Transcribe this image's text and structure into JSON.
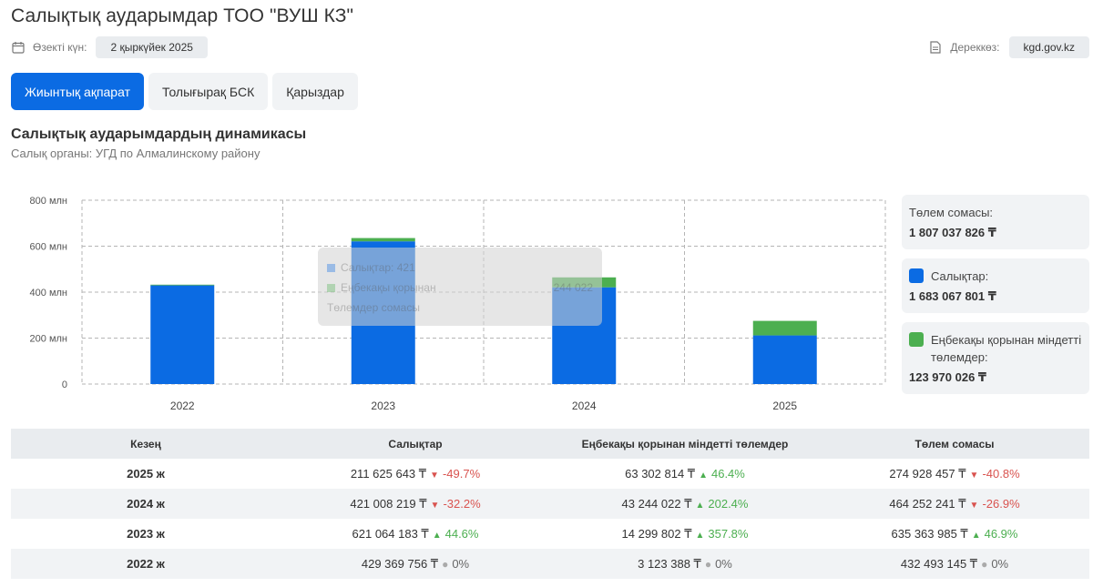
{
  "title": "Салықтық аударымдар ТОО \"ВУШ КЗ\"",
  "meta": {
    "date_label": "Өзекті күн:",
    "date_value": "2 қыркүйек 2025",
    "source_label": "Дереккөз:",
    "source_value": "kgd.gov.kz",
    "calendar_icon": "calendar-icon",
    "document_icon": "document-icon"
  },
  "tabs": [
    {
      "label": "Жиынтық ақпарат",
      "active": true
    },
    {
      "label": "Толығырақ БСК",
      "active": false
    },
    {
      "label": "Қарыздар",
      "active": false
    }
  ],
  "section": {
    "title": "Салықтық аударымдардың динамикасы",
    "subtitle": "Салық органы: УГД по Алмалинскому району"
  },
  "colors": {
    "accent": "#0b6be3",
    "taxes": "#0b6be3",
    "payroll": "#4caf50",
    "down": "#d9534f",
    "up": "#4caf50"
  },
  "chart_data": {
    "type": "bar",
    "stacked": true,
    "categories": [
      "2022",
      "2023",
      "2024",
      "2025"
    ],
    "y_ticks": [
      "0",
      "200 млн",
      "400 млн",
      "600 млн",
      "800 млн"
    ],
    "ylim": [
      0,
      800000000
    ],
    "grid": true,
    "legend": "right",
    "series": [
      {
        "name": "Салықтар",
        "values": [
          429369756,
          621064183,
          421008219,
          211625643
        ]
      },
      {
        "name": "Еңбекақы қорынан міндетті төлемдер",
        "values": [
          3123388,
          14299802,
          43244022,
          63302814
        ]
      }
    ]
  },
  "tooltip": {
    "row1_label": "Салықтар: 421",
    "row2_label": "Еңбекақы қорынан",
    "row2_value": "244 022",
    "row3_label": "Төлемдер сомасы"
  },
  "summary": {
    "total_label": "Төлем сомасы:",
    "total_value": "1 807 037 826 ₸",
    "taxes_label": "Салықтар:",
    "taxes_value": "1 683 067 801 ₸",
    "payroll_label": "Еңбекақы қорынан міндетті төлемдер:",
    "payroll_value": "123 970 026 ₸"
  },
  "table": {
    "headers": [
      "Кезең",
      "Салықтар",
      "Еңбекақы қорынан міндетті төлемдер",
      "Төлем сомасы"
    ],
    "rows": [
      {
        "period": "2025 ж",
        "taxes": "211 625 643 ₸",
        "taxes_chg": "-49.7%",
        "taxes_dir": "down",
        "payroll": "63 302 814 ₸",
        "payroll_chg": "46.4%",
        "payroll_dir": "up",
        "total": "274 928 457 ₸",
        "total_chg": "-40.8%",
        "total_dir": "down"
      },
      {
        "period": "2024 ж",
        "taxes": "421 008 219 ₸",
        "taxes_chg": "-32.2%",
        "taxes_dir": "down",
        "payroll": "43 244 022 ₸",
        "payroll_chg": "202.4%",
        "payroll_dir": "up",
        "total": "464 252 241 ₸",
        "total_chg": "-26.9%",
        "total_dir": "down"
      },
      {
        "period": "2023 ж",
        "taxes": "621 064 183 ₸",
        "taxes_chg": "44.6%",
        "taxes_dir": "up",
        "payroll": "14 299 802 ₸",
        "payroll_chg": "357.8%",
        "payroll_dir": "up",
        "total": "635 363 985 ₸",
        "total_chg": "46.9%",
        "total_dir": "up"
      },
      {
        "period": "2022 ж",
        "taxes": "429 369 756 ₸",
        "taxes_chg": "0%",
        "taxes_dir": "flat",
        "payroll": "3 123 388 ₸",
        "payroll_chg": "0%",
        "payroll_dir": "flat",
        "total": "432 493 145 ₸",
        "total_chg": "0%",
        "total_dir": "flat"
      }
    ]
  }
}
